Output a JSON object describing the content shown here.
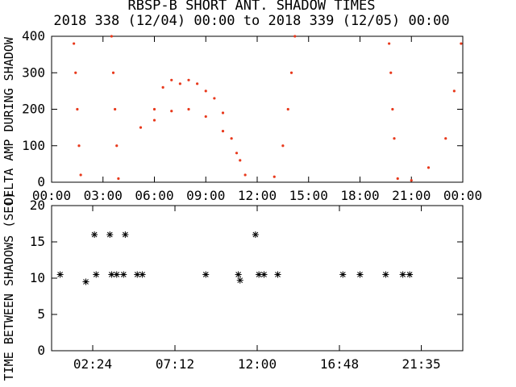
{
  "title_line1": "RBSP-B SHORT ANT. SHADOW TIMES",
  "title_line2": "2018 338 (12/04) 00:00 to 2018 339 (12/05) 00:00",
  "chart_data": [
    {
      "type": "scatter",
      "ylabel": "DELTA AMP DURING SHADOW",
      "ylim": [
        0,
        400
      ],
      "xlim": [
        0,
        24
      ],
      "x_ticks": [
        "00:00",
        "03:00",
        "06:00",
        "09:00",
        "12:00",
        "15:00",
        "18:00",
        "21:00",
        "00:00"
      ],
      "y_ticks": [
        "0",
        "100",
        "200",
        "300",
        "400"
      ],
      "point_color": "#e8391c",
      "grid": false,
      "series": [
        {
          "values": [
            [
              1.3,
              380
            ],
            [
              1.4,
              300
            ],
            [
              1.5,
              200
            ],
            [
              1.6,
              100
            ],
            [
              1.7,
              20
            ],
            [
              3.5,
              400
            ],
            [
              3.6,
              300
            ],
            [
              3.7,
              200
            ],
            [
              3.8,
              100
            ],
            [
              3.9,
              10
            ],
            [
              5.2,
              150
            ],
            [
              6.0,
              200
            ],
            [
              6.5,
              260
            ],
            [
              7.0,
              280
            ],
            [
              7.5,
              270
            ],
            [
              8.0,
              280
            ],
            [
              8.5,
              270
            ],
            [
              9.0,
              250
            ],
            [
              9.5,
              230
            ],
            [
              10.0,
              190
            ],
            [
              10.5,
              120
            ],
            [
              11.0,
              60
            ],
            [
              11.3,
              20
            ],
            [
              6.0,
              170
            ],
            [
              7.0,
              195
            ],
            [
              8.0,
              200
            ],
            [
              9.0,
              180
            ],
            [
              10.0,
              140
            ],
            [
              10.8,
              80
            ],
            [
              13.0,
              15
            ],
            [
              13.5,
              100
            ],
            [
              13.8,
              200
            ],
            [
              14.0,
              300
            ],
            [
              14.2,
              400
            ],
            [
              19.7,
              380
            ],
            [
              19.8,
              300
            ],
            [
              19.9,
              200
            ],
            [
              20.0,
              120
            ],
            [
              20.2,
              10
            ],
            [
              21.0,
              5
            ],
            [
              22.0,
              40
            ],
            [
              23.0,
              120
            ],
            [
              23.5,
              250
            ],
            [
              23.9,
              380
            ]
          ]
        }
      ]
    },
    {
      "type": "scatter",
      "ylabel": "TIME BETWEEN SHADOWS (SEC)",
      "ylim": [
        0,
        20
      ],
      "xlim": [
        0,
        24
      ],
      "x_ticks": [
        "02:24",
        "07:12",
        "12:00",
        "16:48",
        "21:35"
      ],
      "y_ticks": [
        "0",
        "5",
        "10",
        "15",
        "20"
      ],
      "marker": "asterisk",
      "grid": false,
      "series": [
        {
          "values": [
            [
              0.5,
              10.5
            ],
            [
              2.0,
              9.5
            ],
            [
              2.5,
              16
            ],
            [
              2.6,
              10.5
            ],
            [
              3.4,
              16
            ],
            [
              3.5,
              10.5
            ],
            [
              3.8,
              10.5
            ],
            [
              4.3,
              16
            ],
            [
              4.2,
              10.5
            ],
            [
              5.0,
              10.5
            ],
            [
              5.3,
              10.5
            ],
            [
              9.0,
              10.5
            ],
            [
              10.9,
              10.5
            ],
            [
              11.0,
              9.7
            ],
            [
              11.9,
              16
            ],
            [
              12.1,
              10.5
            ],
            [
              12.4,
              10.5
            ],
            [
              13.2,
              10.5
            ],
            [
              17.0,
              10.5
            ],
            [
              18.0,
              10.5
            ],
            [
              19.5,
              10.5
            ],
            [
              20.5,
              10.5
            ],
            [
              20.9,
              10.5
            ]
          ]
        }
      ]
    }
  ]
}
